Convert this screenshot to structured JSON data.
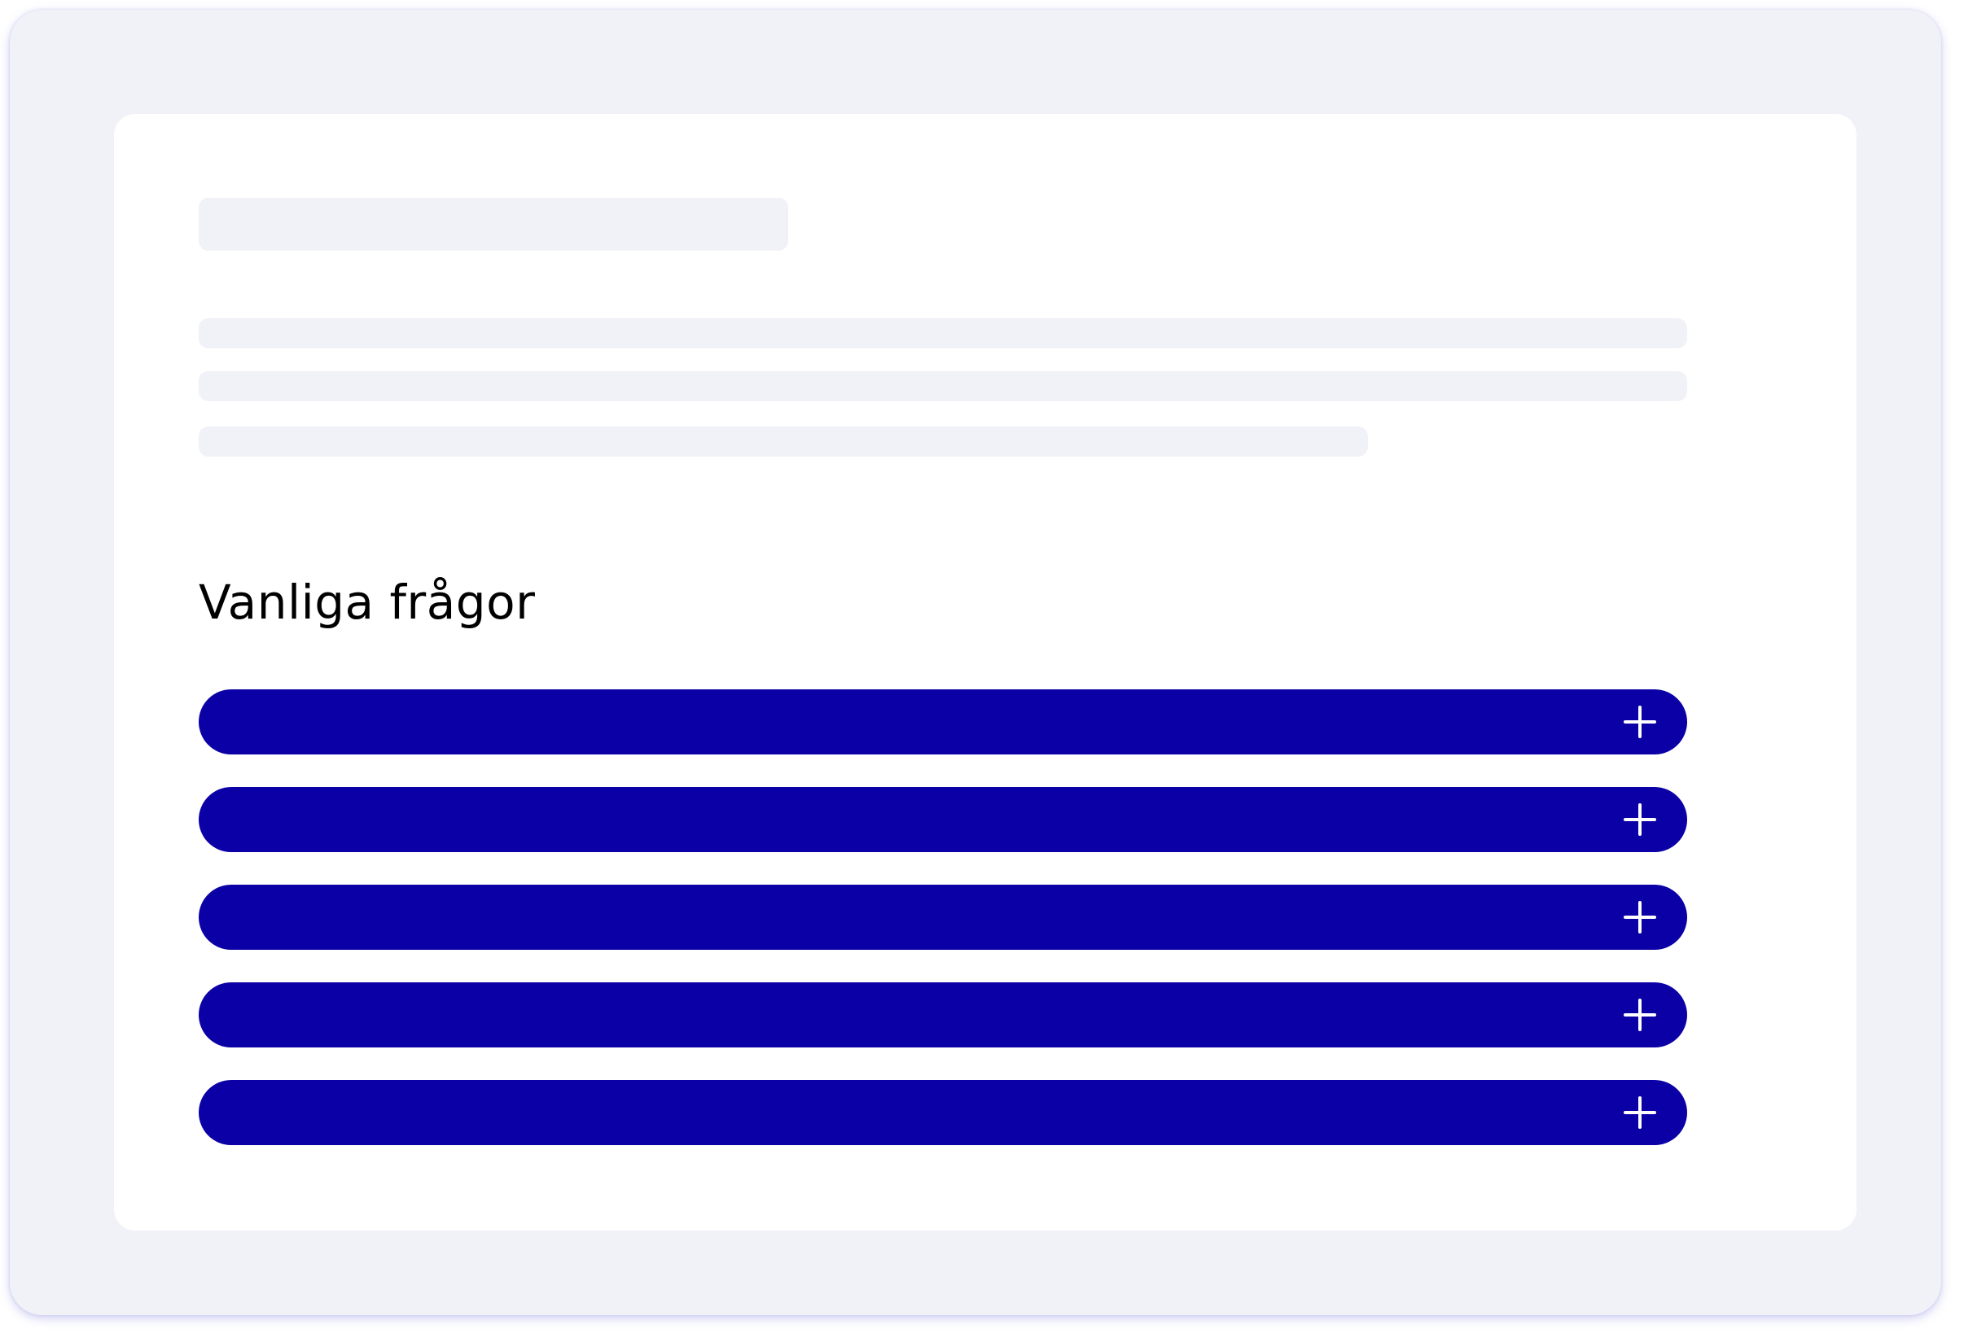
{
  "faq": {
    "heading": "Vanliga frågor",
    "items": [
      {
        "question": ""
      },
      {
        "question": ""
      },
      {
        "question": ""
      },
      {
        "question": ""
      },
      {
        "question": ""
      }
    ]
  },
  "colors": {
    "frame_background": "#f1f2f7",
    "card_background": "#ffffff",
    "skeleton": "#f1f2f7",
    "accordion_background": "#0b00a6",
    "accordion_icon": "#ffffff",
    "heading_text": "#000000"
  },
  "icons": {
    "accordion_toggle": "plus-icon"
  }
}
